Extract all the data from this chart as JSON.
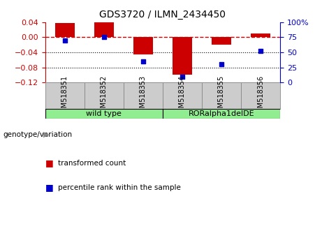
{
  "title": "GDS3720 / ILMN_2434450",
  "categories": [
    "GSM518351",
    "GSM518352",
    "GSM518353",
    "GSM518354",
    "GSM518355",
    "GSM518356"
  ],
  "bar_values": [
    0.037,
    0.04,
    -0.045,
    -0.1,
    -0.02,
    0.01
  ],
  "scatter_values": [
    70,
    75,
    35,
    10,
    30,
    52
  ],
  "bar_color": "#CC0000",
  "scatter_color": "#0000CC",
  "ylim_left": [
    -0.12,
    0.04
  ],
  "ylim_right": [
    0,
    100
  ],
  "yticks_left": [
    0.04,
    0.0,
    -0.04,
    -0.08,
    -0.12
  ],
  "yticks_right": [
    100,
    75,
    50,
    25,
    0
  ],
  "hline_y": 0.0,
  "dotted_lines": [
    -0.04,
    -0.08
  ],
  "group_labels": [
    "wild type",
    "RORalpha1delDE"
  ],
  "group_ranges": [
    [
      0,
      2
    ],
    [
      3,
      5
    ]
  ],
  "group_color": "#90EE90",
  "group_row_label": "genotype/variation",
  "legend_bar_label": "transformed count",
  "legend_scatter_label": "percentile rank within the sample",
  "label_bg_color": "#CCCCCC",
  "bar_width": 0.5
}
